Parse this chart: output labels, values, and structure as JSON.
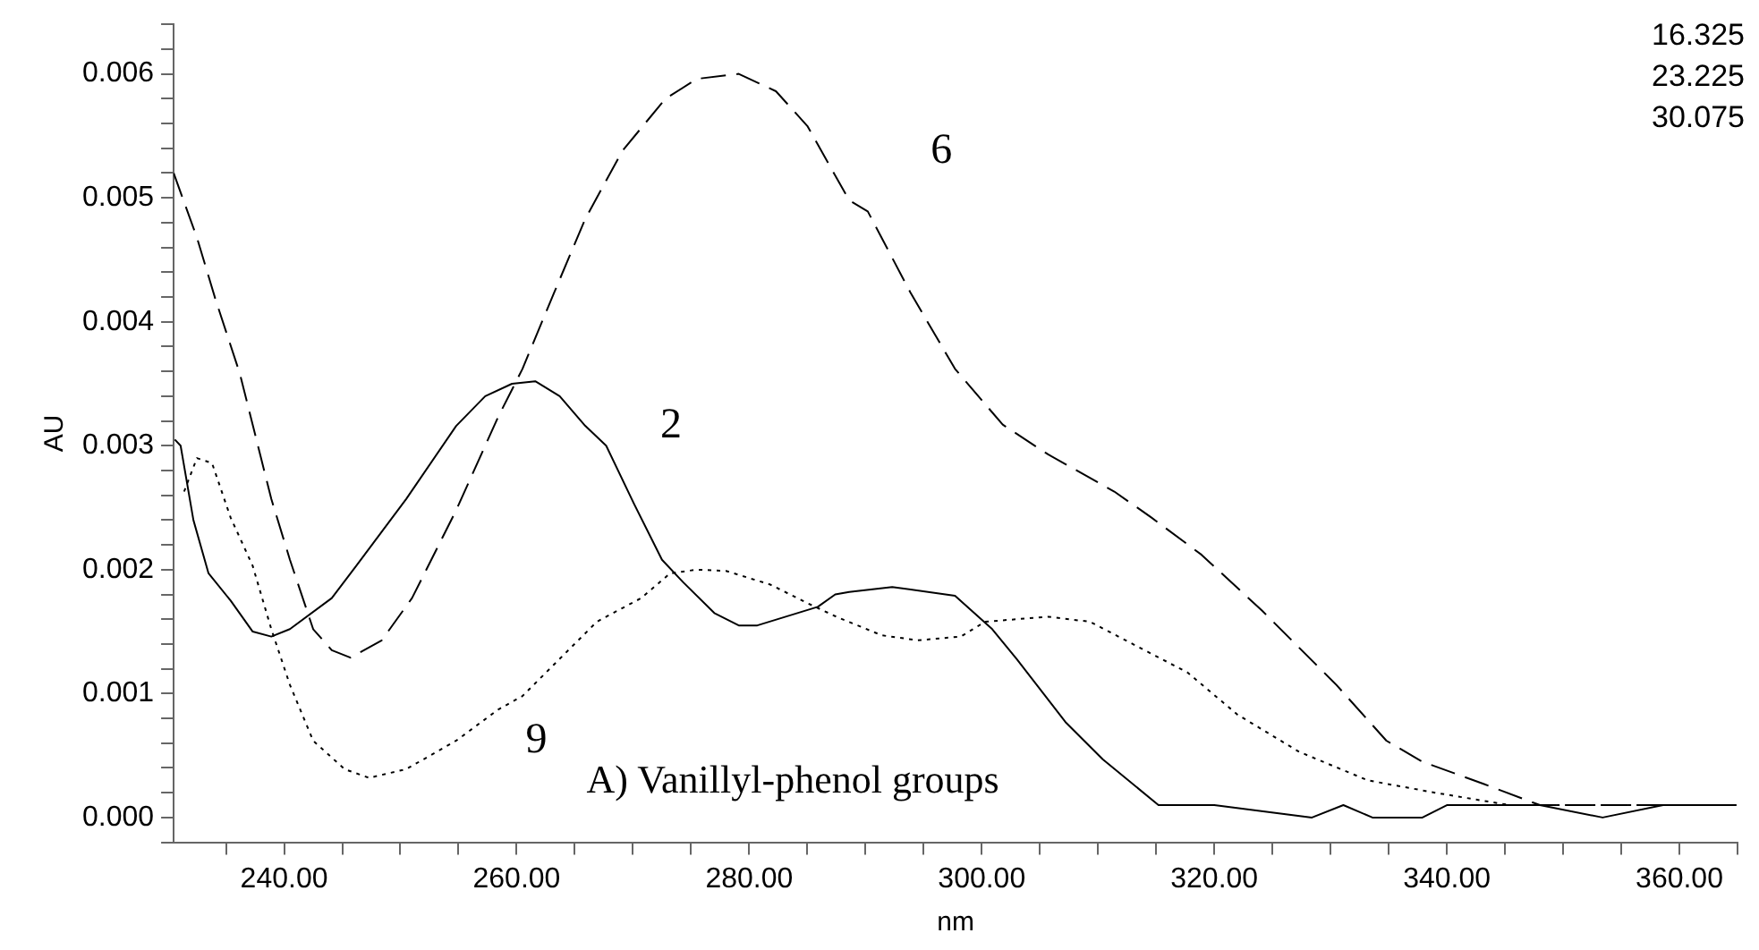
{
  "chart_data": {
    "type": "line",
    "xlabel": "nm",
    "ylabel": "AU",
    "xlim": [
      230.5,
      365
    ],
    "ylim": [
      -0.0002,
      0.0064
    ],
    "xticks": [
      {
        "value": 235,
        "label": null
      },
      {
        "value": 240,
        "label": "240.00"
      },
      {
        "value": 245,
        "label": null
      },
      {
        "value": 250,
        "label": null
      },
      {
        "value": 255,
        "label": null
      },
      {
        "value": 260,
        "label": "260.00"
      },
      {
        "value": 265,
        "label": null
      },
      {
        "value": 270,
        "label": null
      },
      {
        "value": 275,
        "label": null
      },
      {
        "value": 280,
        "label": "280.00"
      },
      {
        "value": 285,
        "label": null
      },
      {
        "value": 290,
        "label": null
      },
      {
        "value": 295,
        "label": null
      },
      {
        "value": 300,
        "label": "300.00"
      },
      {
        "value": 305,
        "label": null
      },
      {
        "value": 310,
        "label": null
      },
      {
        "value": 315,
        "label": null
      },
      {
        "value": 320,
        "label": "320.00"
      },
      {
        "value": 325,
        "label": null
      },
      {
        "value": 330,
        "label": null
      },
      {
        "value": 335,
        "label": null
      },
      {
        "value": 340,
        "label": "340.00"
      },
      {
        "value": 345,
        "label": null
      },
      {
        "value": 350,
        "label": null
      },
      {
        "value": 355,
        "label": null
      },
      {
        "value": 360,
        "label": "360.00"
      },
      {
        "value": 365,
        "label": null
      }
    ],
    "yticks": [
      {
        "value": -0.0002,
        "label": null
      },
      {
        "value": 0,
        "label": "0.000"
      },
      {
        "value": 0.0002,
        "label": null
      },
      {
        "value": 0.0004,
        "label": null
      },
      {
        "value": 0.0006,
        "label": null
      },
      {
        "value": 0.0008,
        "label": null
      },
      {
        "value": 0.001,
        "label": "0.001"
      },
      {
        "value": 0.0012,
        "label": null
      },
      {
        "value": 0.0014,
        "label": null
      },
      {
        "value": 0.0016,
        "label": null
      },
      {
        "value": 0.0018,
        "label": null
      },
      {
        "value": 0.002,
        "label": "0.002"
      },
      {
        "value": 0.0022,
        "label": null
      },
      {
        "value": 0.0024,
        "label": null
      },
      {
        "value": 0.0026,
        "label": null
      },
      {
        "value": 0.0028,
        "label": null
      },
      {
        "value": 0.003,
        "label": "0.003"
      },
      {
        "value": 0.0032,
        "label": null
      },
      {
        "value": 0.0034,
        "label": null
      },
      {
        "value": 0.0036,
        "label": null
      },
      {
        "value": 0.0038,
        "label": null
      },
      {
        "value": 0.004,
        "label": "0.004"
      },
      {
        "value": 0.0042,
        "label": null
      },
      {
        "value": 0.0044,
        "label": null
      },
      {
        "value": 0.0046,
        "label": null
      },
      {
        "value": 0.0048,
        "label": null
      },
      {
        "value": 0.005,
        "label": "0.005"
      },
      {
        "value": 0.0052,
        "label": null
      },
      {
        "value": 0.0054,
        "label": null
      },
      {
        "value": 0.0056,
        "label": null
      },
      {
        "value": 0.0058,
        "label": null
      },
      {
        "value": 0.006,
        "label": "0.006"
      },
      {
        "value": 0.0062,
        "label": null
      },
      {
        "value": 0.0064,
        "label": null
      }
    ],
    "grid": false,
    "legend": false,
    "marker": "none",
    "series": [
      {
        "color": "#000000",
        "line_style": "solid",
        "x": [
          230.6,
          231.1,
          232.2,
          233.5,
          235.4,
          237.3,
          238.9,
          240.5,
          244.1,
          246.2,
          250.5,
          254.8,
          257.3,
          259.6,
          261.6,
          263.7,
          265.9,
          267.7,
          270.1,
          272.5,
          274.3,
          277.0,
          279.1,
          280.7,
          285.9,
          287.4,
          288.6,
          292.3,
          297.7,
          300.9,
          303.0,
          307.2,
          310.4,
          315.2,
          320.0,
          328.4,
          331.1,
          333.6,
          337.9,
          340.0,
          348.0,
          353.4,
          358.6,
          364.9
        ],
        "values": [
          0.00305,
          0.003,
          0.0024,
          0.00197,
          0.00175,
          0.0015,
          0.00146,
          0.00152,
          0.00177,
          0.00203,
          0.00257,
          0.00316,
          0.0034,
          0.0035,
          0.00352,
          0.0034,
          0.00316,
          0.003,
          0.00253,
          0.00208,
          0.0019,
          0.00165,
          0.00155,
          0.00155,
          0.0017,
          0.0018,
          0.00182,
          0.00186,
          0.00179,
          0.00152,
          0.00128,
          0.00077,
          0.00047,
          0.0001,
          0.0001,
          0,
          0.0001,
          0,
          0,
          0.0001,
          0.0001,
          0,
          0.0001,
          0.0001
        ]
      },
      {
        "color": "#000000",
        "line_style": "dashed",
        "x": [
          230.5,
          232.5,
          234.1,
          236.2,
          238.9,
          240.5,
          242.5,
          244.1,
          245.7,
          248.4,
          251.0,
          254.8,
          258.4,
          260.5,
          263.2,
          265.9,
          269.1,
          272.8,
          275.5,
          279.1,
          282.3,
          285.0,
          288.6,
          290.2,
          293.9,
          297.7,
          301.8,
          305.7,
          311.4,
          314.6,
          318.9,
          324.1,
          330.5,
          334.8,
          337.9,
          343.2,
          348.0,
          353.4,
          358.6,
          364.9
        ],
        "values": [
          0.0052,
          0.00468,
          0.00418,
          0.00358,
          0.00257,
          0.00208,
          0.00152,
          0.00135,
          0.00129,
          0.00143,
          0.00177,
          0.00248,
          0.00323,
          0.00362,
          0.00423,
          0.00483,
          0.00538,
          0.0058,
          0.00596,
          0.006,
          0.00586,
          0.00558,
          0.00498,
          0.00489,
          0.00423,
          0.00362,
          0.00317,
          0.00293,
          0.00263,
          0.00242,
          0.00212,
          0.00167,
          0.00107,
          0.00062,
          0.00045,
          0.00027,
          0.0001,
          0.0001,
          0.0001,
          0.0001
        ]
      },
      {
        "color": "#000000",
        "line_style": "dotted",
        "x": [
          231.4,
          232.5,
          233.8,
          235.4,
          237.3,
          238.9,
          240.5,
          242.5,
          245.2,
          247.3,
          250.5,
          254.8,
          258.4,
          260.5,
          263.7,
          266.9,
          270.7,
          273.2,
          275.5,
          278.0,
          281.8,
          285.0,
          287.5,
          291.4,
          294.5,
          298.2,
          300.3,
          305.7,
          309.3,
          313.6,
          317.7,
          322.0,
          327.3,
          333.2,
          339.0,
          345.4,
          353.4,
          364.9
        ],
        "values": [
          0.00263,
          0.0029,
          0.00286,
          0.00242,
          0.00203,
          0.00152,
          0.00107,
          0.00062,
          0.00039,
          0.00032,
          0.00039,
          0.00062,
          0.00087,
          0.00098,
          0.00128,
          0.00158,
          0.00177,
          0.00197,
          0.002,
          0.00199,
          0.00188,
          0.00173,
          0.00162,
          0.00147,
          0.00143,
          0.00146,
          0.00158,
          0.00162,
          0.00158,
          0.00137,
          0.00117,
          0.00083,
          0.00053,
          0.0003,
          0.0002,
          0.0001,
          0.0001,
          0.0001
        ]
      }
    ],
    "annotations": [
      "16.325",
      "23.225",
      "30.075",
      "6",
      "2",
      "9",
      "A) Vanillyl-phenol groups"
    ]
  }
}
